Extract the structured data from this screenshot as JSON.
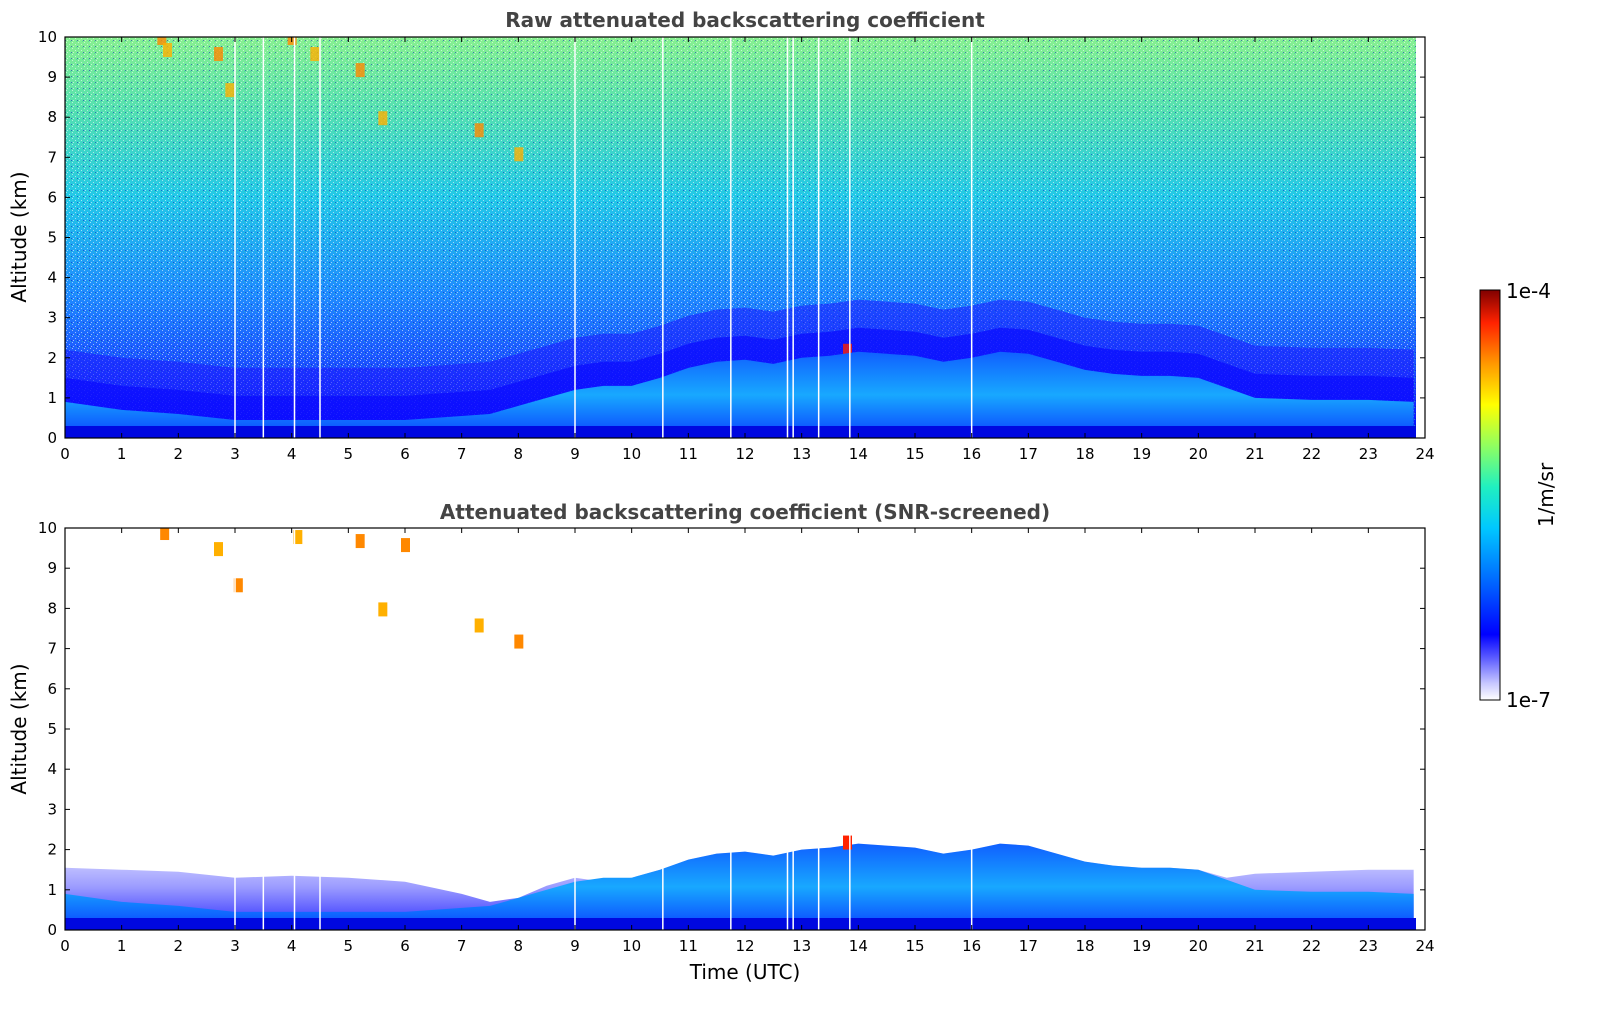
{
  "chart_data": [
    {
      "type": "heatmap",
      "title": "Raw attenuated backscattering coefficient",
      "xlabel": "",
      "ylabel": "Altitude (km)",
      "xlim": [
        0,
        24
      ],
      "ylim": [
        0,
        10
      ],
      "xticks": [
        "0",
        "1",
        "2",
        "3",
        "4",
        "5",
        "6",
        "7",
        "8",
        "9",
        "10",
        "11",
        "12",
        "13",
        "14",
        "15",
        "16",
        "17",
        "18",
        "19",
        "20",
        "21",
        "22",
        "23",
        "24"
      ],
      "yticks": [
        "0",
        "1",
        "2",
        "3",
        "4",
        "5",
        "6",
        "7",
        "8",
        "9",
        "10"
      ],
      "boundary_layer_top_km": [
        [
          0,
          0.9
        ],
        [
          1,
          0.7
        ],
        [
          2,
          0.6
        ],
        [
          3,
          0.45
        ],
        [
          4,
          0.45
        ],
        [
          5,
          0.45
        ],
        [
          6,
          0.45
        ],
        [
          7,
          0.55
        ],
        [
          7.5,
          0.6
        ],
        [
          8,
          0.8
        ],
        [
          8.5,
          1.0
        ],
        [
          9,
          1.2
        ],
        [
          9.5,
          1.3
        ],
        [
          10,
          1.3
        ],
        [
          10.5,
          1.5
        ],
        [
          11,
          1.75
        ],
        [
          11.5,
          1.9
        ],
        [
          12,
          1.95
        ],
        [
          12.5,
          1.85
        ],
        [
          13,
          2.0
        ],
        [
          13.5,
          2.05
        ],
        [
          14,
          2.15
        ],
        [
          14.5,
          2.1
        ],
        [
          15,
          2.05
        ],
        [
          15.5,
          1.9
        ],
        [
          16,
          2.0
        ],
        [
          16.5,
          2.15
        ],
        [
          17,
          2.1
        ],
        [
          17.5,
          1.9
        ],
        [
          18,
          1.7
        ],
        [
          18.5,
          1.6
        ],
        [
          19,
          1.55
        ],
        [
          19.5,
          1.55
        ],
        [
          20,
          1.5
        ],
        [
          20.5,
          1.25
        ],
        [
          21,
          1.0
        ],
        [
          22,
          0.95
        ],
        [
          23,
          0.95
        ],
        [
          23.8,
          0.9
        ]
      ],
      "cirrus_traces_km": [
        [
          1.7,
          10.0
        ],
        [
          1.8,
          9.7
        ],
        [
          2.7,
          9.6
        ],
        [
          2.9,
          8.7
        ],
        [
          4.0,
          10.0
        ],
        [
          4.4,
          9.6
        ],
        [
          5.2,
          9.2
        ],
        [
          5.6,
          8.0
        ],
        [
          7.3,
          7.7
        ],
        [
          8.0,
          7.1
        ],
        [
          13.8,
          2.2
        ]
      ],
      "data_gaps_utc": [
        3.0,
        3.5,
        4.05,
        4.5,
        9.0,
        10.55,
        11.75,
        12.75,
        12.85,
        13.3,
        13.85,
        16.0
      ]
    },
    {
      "type": "heatmap",
      "title": "Attenuated backscattering coefficient (SNR-screened)",
      "xlabel": "Time (UTC)",
      "ylabel": "Altitude (km)",
      "xlim": [
        0,
        24
      ],
      "ylim": [
        0,
        10
      ],
      "xticks": [
        "0",
        "1",
        "2",
        "3",
        "4",
        "5",
        "6",
        "7",
        "8",
        "9",
        "10",
        "11",
        "12",
        "13",
        "14",
        "15",
        "16",
        "17",
        "18",
        "19",
        "20",
        "21",
        "22",
        "23",
        "24"
      ],
      "yticks": [
        "0",
        "1",
        "2",
        "3",
        "4",
        "5",
        "6",
        "7",
        "8",
        "9",
        "10"
      ],
      "screened_layer_top_km": [
        [
          0,
          1.55
        ],
        [
          1,
          1.5
        ],
        [
          2,
          1.45
        ],
        [
          3,
          1.3
        ],
        [
          4,
          1.35
        ],
        [
          5,
          1.3
        ],
        [
          6,
          1.2
        ],
        [
          7,
          0.9
        ],
        [
          7.5,
          0.7
        ],
        [
          8,
          0.8
        ],
        [
          8.5,
          1.1
        ],
        [
          9,
          1.3
        ],
        [
          9.5,
          1.2
        ],
        [
          10,
          1.3
        ],
        [
          10.5,
          1.5
        ],
        [
          11,
          1.75
        ],
        [
          11.5,
          1.9
        ],
        [
          12,
          1.95
        ],
        [
          12.5,
          1.85
        ],
        [
          13,
          2.0
        ],
        [
          13.5,
          2.05
        ],
        [
          14,
          2.15
        ],
        [
          14.5,
          2.1
        ],
        [
          15,
          2.05
        ],
        [
          15.5,
          1.9
        ],
        [
          16,
          2.0
        ],
        [
          16.5,
          2.15
        ],
        [
          17,
          2.1
        ],
        [
          17.5,
          1.9
        ],
        [
          18,
          1.7
        ],
        [
          18.5,
          1.6
        ],
        [
          19,
          1.55
        ],
        [
          19.5,
          1.55
        ],
        [
          20,
          1.5
        ],
        [
          20.5,
          1.3
        ],
        [
          21,
          1.4
        ],
        [
          22,
          1.45
        ],
        [
          23,
          1.5
        ],
        [
          23.8,
          1.5
        ]
      ],
      "cirrus_traces_km": [
        [
          1.75,
          9.9
        ],
        [
          2.7,
          9.5
        ],
        [
          3.05,
          8.6
        ],
        [
          4.1,
          9.8
        ],
        [
          5.2,
          9.7
        ],
        [
          5.6,
          8.0
        ],
        [
          6.0,
          9.6
        ],
        [
          7.3,
          7.6
        ],
        [
          8.0,
          7.2
        ],
        [
          13.8,
          2.2
        ]
      ],
      "data_gaps_utc": [
        3.0,
        3.5,
        4.05,
        4.5,
        9.0,
        10.55,
        11.75,
        12.75,
        12.85,
        13.3,
        13.85,
        16.0
      ]
    }
  ],
  "colorbar": {
    "max_label": "1e-4",
    "min_label": "1e-7",
    "unit_label": "1/m/sr",
    "scale": "log",
    "range": [
      1e-07,
      0.0001
    ],
    "colormap": [
      "#ffffff",
      "#c8c8ff",
      "#0000ff",
      "#0064ff",
      "#00c8ff",
      "#33ffcc",
      "#aaff55",
      "#ffff00",
      "#ff9900",
      "#ff2200",
      "#800000"
    ]
  }
}
